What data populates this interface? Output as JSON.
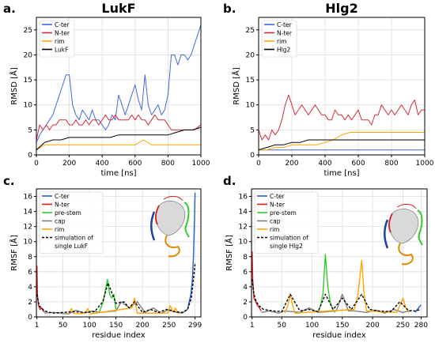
{
  "colors": {
    "cter": "#4169e1",
    "nter": "#d62a3a",
    "rim": "#ffa500",
    "black": "#000000",
    "prestem": "#2ecc2e",
    "cap": "#808080",
    "grid": "#dddddd",
    "blue_strong": "#1f5fd6",
    "red_strong": "#d21f1f"
  },
  "chart_data": [
    {
      "panel": "a",
      "type": "line",
      "panel_letter": "a.",
      "title": "LukF",
      "xlabel": "time [ns]",
      "ylabel": "RMSD [Å]",
      "xlim": [
        0,
        1000
      ],
      "ylim": [
        0,
        27.5
      ],
      "xticks": [
        0,
        200,
        400,
        600,
        800,
        1000
      ],
      "yticks": [
        0,
        5,
        10,
        15,
        20,
        25
      ],
      "grid": true,
      "legend": "top-left",
      "series": [
        {
          "name": "C-ter",
          "color_key": "cter",
          "x": [
            0,
            20,
            40,
            60,
            80,
            100,
            120,
            140,
            160,
            180,
            200,
            220,
            240,
            260,
            280,
            300,
            320,
            340,
            360,
            380,
            400,
            420,
            440,
            460,
            480,
            500,
            520,
            540,
            560,
            580,
            600,
            620,
            640,
            660,
            680,
            700,
            720,
            740,
            760,
            780,
            800,
            820,
            840,
            860,
            880,
            900,
            920,
            940,
            960,
            980,
            1000
          ],
          "y": [
            2.5,
            4,
            5,
            6,
            7,
            8,
            10,
            12,
            14,
            16,
            16,
            10,
            8,
            7,
            9,
            8,
            7,
            9,
            7,
            7,
            6,
            5,
            6,
            8,
            7,
            12,
            10,
            8,
            10,
            12,
            14,
            11,
            9,
            16,
            10,
            8,
            9,
            10,
            8,
            9,
            12,
            20,
            20,
            18,
            20,
            20,
            19,
            20,
            22,
            24,
            26
          ]
        },
        {
          "name": "N-ter",
          "color_key": "nter",
          "x": [
            0,
            20,
            40,
            60,
            80,
            100,
            120,
            140,
            160,
            180,
            200,
            220,
            240,
            260,
            280,
            300,
            320,
            340,
            360,
            380,
            400,
            420,
            440,
            460,
            480,
            500,
            520,
            540,
            560,
            580,
            600,
            620,
            640,
            660,
            680,
            700,
            720,
            740,
            760,
            780,
            800,
            820,
            840,
            860,
            880,
            900,
            920,
            940,
            960,
            980,
            1000
          ],
          "y": [
            3,
            6,
            5,
            6,
            5,
            6,
            6,
            7,
            7,
            7,
            6,
            6,
            7,
            6,
            6,
            7,
            6,
            7,
            7,
            6,
            7,
            8,
            7,
            7,
            8,
            7,
            7,
            7,
            7,
            8,
            7,
            8,
            7,
            7,
            6,
            7,
            8,
            7,
            7,
            7,
            6,
            5,
            5,
            5,
            5,
            5,
            5,
            5,
            5,
            5.5,
            6
          ]
        },
        {
          "name": "rim",
          "color_key": "rim",
          "x": [
            0,
            50,
            100,
            150,
            200,
            250,
            300,
            350,
            400,
            450,
            500,
            550,
            600,
            650,
            700,
            750,
            800,
            850,
            900,
            950,
            1000
          ],
          "y": [
            1,
            2,
            2,
            2,
            2,
            2,
            2,
            2,
            2,
            2,
            2,
            2,
            2,
            3,
            2,
            2,
            2,
            2,
            2,
            2,
            2
          ]
        },
        {
          "name": "LukF",
          "color_key": "black",
          "x": [
            0,
            50,
            100,
            150,
            200,
            250,
            300,
            350,
            400,
            450,
            500,
            550,
            600,
            650,
            700,
            750,
            800,
            850,
            900,
            950,
            1000
          ],
          "y": [
            1,
            2.5,
            3,
            3,
            3.5,
            3.5,
            3.5,
            3.5,
            3.5,
            3.5,
            4,
            4,
            4,
            4,
            4,
            4,
            4,
            4.5,
            5,
            5,
            5.5
          ]
        }
      ]
    },
    {
      "panel": "b",
      "type": "line",
      "panel_letter": "b.",
      "title": "Hlg2",
      "xlabel": "time [ns]",
      "ylabel": "RMSD [Å]",
      "xlim": [
        0,
        1000
      ],
      "ylim": [
        0,
        27.5
      ],
      "xticks": [
        0,
        200,
        400,
        600,
        800,
        1000
      ],
      "yticks": [
        0,
        5,
        10,
        15,
        20,
        25
      ],
      "grid": true,
      "legend": "top-left",
      "series": [
        {
          "name": "C-ter",
          "color_key": "cter",
          "x": [
            0,
            50,
            100,
            150,
            200,
            250,
            300,
            350,
            400,
            450,
            500,
            550,
            600,
            650,
            700,
            750,
            800,
            850,
            900,
            950,
            1000
          ],
          "y": [
            1,
            1,
            1,
            1,
            1,
            1,
            1,
            1,
            1,
            1,
            1,
            1,
            1,
            1,
            1,
            1,
            1,
            1,
            1,
            1,
            1
          ]
        },
        {
          "name": "N-ter",
          "color_key": "nter",
          "x": [
            0,
            20,
            40,
            60,
            80,
            100,
            120,
            140,
            160,
            180,
            200,
            220,
            240,
            260,
            280,
            300,
            320,
            340,
            360,
            380,
            400,
            420,
            440,
            460,
            480,
            500,
            520,
            540,
            560,
            580,
            600,
            620,
            640,
            660,
            680,
            700,
            720,
            740,
            760,
            780,
            800,
            820,
            840,
            860,
            880,
            900,
            920,
            940,
            960,
            980,
            1000
          ],
          "y": [
            5,
            3,
            4,
            3,
            5,
            4,
            5,
            7,
            10,
            12,
            10,
            8,
            9,
            10,
            9,
            8,
            9,
            10,
            9,
            8,
            8,
            7,
            7,
            9,
            8,
            8,
            7,
            8,
            7,
            8,
            9,
            7,
            7,
            7,
            6,
            8,
            8,
            10,
            9,
            8,
            9,
            8,
            9,
            10,
            9,
            8,
            10,
            11,
            8,
            9,
            9
          ]
        },
        {
          "name": "rim",
          "color_key": "rim",
          "x": [
            0,
            50,
            100,
            150,
            200,
            250,
            300,
            350,
            400,
            450,
            500,
            550,
            600,
            650,
            700,
            750,
            800,
            850,
            900,
            950,
            1000
          ],
          "y": [
            1,
            1,
            1.5,
            1.5,
            2,
            2,
            2,
            2,
            2.5,
            3,
            4,
            4.5,
            4.5,
            4.5,
            4.5,
            4.5,
            4.5,
            4.5,
            4.5,
            4.5,
            4.5
          ]
        },
        {
          "name": "Hlg2",
          "color_key": "black",
          "x": [
            0,
            50,
            100,
            150,
            200,
            250,
            300,
            350,
            400,
            450,
            500,
            550,
            600,
            650,
            700,
            750,
            800,
            850,
            900,
            950,
            1000
          ],
          "y": [
            1,
            1.5,
            2,
            2,
            2.5,
            2.5,
            3,
            3,
            3,
            3,
            3,
            3,
            3,
            3,
            3,
            3,
            3,
            3,
            3,
            3,
            3
          ]
        }
      ]
    },
    {
      "panel": "c",
      "type": "line",
      "panel_letter": "c.",
      "xlabel": "residue index",
      "ylabel": "RMSF [Å]",
      "xlim": [
        0,
        310
      ],
      "ylim": [
        0,
        17
      ],
      "xticks": [
        1,
        50,
        100,
        150,
        200,
        250,
        299
      ],
      "yticks": [
        0,
        2,
        4,
        6,
        8,
        10,
        12,
        14,
        16
      ],
      "grid": true,
      "legend": "top-left",
      "series": [
        {
          "name": "C-ter",
          "color_key": "blue_strong",
          "x": [
            285,
            288,
            291,
            294,
            296,
            298,
            299
          ],
          "y": [
            1,
            2,
            3,
            5,
            8,
            13,
            16.5
          ]
        },
        {
          "name": "N-ter",
          "color_key": "red_strong",
          "x": [
            1,
            2,
            4,
            7,
            10,
            13,
            16
          ],
          "y": [
            6.8,
            3,
            1.5,
            1,
            1.2,
            0.8,
            0.6
          ]
        },
        {
          "name": "pre-stem",
          "color_key": "prestem",
          "x": [
            118,
            122,
            126,
            130,
            134,
            138,
            142,
            146,
            150
          ],
          "y": [
            0.6,
            1.3,
            2,
            3.5,
            5,
            3,
            2.5,
            3,
            1
          ]
        },
        {
          "name": "cap",
          "color_key": "cap",
          "x": [
            16,
            30,
            45,
            60,
            75,
            90,
            105,
            118,
            150,
            160,
            175,
            190,
            205,
            220,
            235,
            250,
            265,
            275,
            285
          ],
          "y": [
            0.5,
            0.6,
            0.5,
            0.4,
            0.9,
            0.5,
            0.8,
            0.6,
            0.8,
            2,
            1.2,
            2,
            0.6,
            1.2,
            0.5,
            1,
            0.6,
            0.5,
            1
          ]
        },
        {
          "name": "rim",
          "color_key": "rim",
          "x": [
            60,
            66,
            70,
            80,
            92,
            97,
            102,
            180,
            185,
            190,
            248,
            252,
            258,
            262,
            268
          ],
          "y": [
            0.4,
            1.1,
            0.5,
            0.4,
            0.5,
            1.1,
            0.4,
            1.2,
            2.5,
            0.5,
            0.5,
            1.5,
            0.6,
            1.2,
            0.4
          ]
        },
        {
          "name": "simulation of single LukF",
          "color_key": "black",
          "dashed": true,
          "x": [
            1,
            5,
            15,
            30,
            50,
            70,
            90,
            110,
            125,
            135,
            150,
            165,
            175,
            185,
            200,
            215,
            230,
            245,
            260,
            275,
            285,
            292,
            296,
            299
          ],
          "y": [
            3,
            1.5,
            0.8,
            0.5,
            0.6,
            0.7,
            0.6,
            0.7,
            2,
            4.5,
            1.8,
            2,
            1.2,
            2,
            0.6,
            1,
            0.6,
            1,
            0.7,
            0.6,
            1,
            2.5,
            5,
            7
          ]
        }
      ]
    },
    {
      "panel": "d",
      "type": "line",
      "panel_letter": "d.",
      "xlabel": "residue index",
      "ylabel": "RMSF [Å]",
      "xlim": [
        0,
        290
      ],
      "ylim": [
        0,
        17
      ],
      "xticks": [
        1,
        50,
        100,
        150,
        200,
        250,
        280
      ],
      "yticks": [
        0,
        2,
        4,
        6,
        8,
        10,
        12,
        14,
        16
      ],
      "grid": true,
      "legend": "top-left",
      "series": [
        {
          "name": "C-ter",
          "color_key": "blue_strong",
          "x": [
            270,
            274,
            278,
            280
          ],
          "y": [
            0.6,
            1,
            1.4,
            1.6
          ]
        },
        {
          "name": "N-ter",
          "color_key": "red_strong",
          "x": [
            1,
            2,
            4,
            7,
            10,
            13,
            16
          ],
          "y": [
            8.7,
            5,
            2.5,
            2,
            1.5,
            1.2,
            0.8
          ]
        },
        {
          "name": "pre-stem",
          "color_key": "prestem",
          "x": [
            110,
            114,
            118,
            122,
            126,
            130,
            134,
            138
          ],
          "y": [
            0.6,
            1.5,
            3,
            8.3,
            4,
            2,
            1,
            0.6
          ]
        },
        {
          "name": "cap",
          "color_key": "cap",
          "x": [
            16,
            30,
            45,
            55,
            80,
            95,
            110,
            140,
            150,
            160,
            170,
            190,
            205,
            220,
            235,
            250,
            265
          ],
          "y": [
            0.6,
            0.8,
            0.5,
            0.8,
            0.6,
            1.2,
            0.6,
            0.8,
            3,
            0.8,
            0.8,
            0.6,
            0.9,
            0.5,
            1,
            0.6,
            0.9
          ]
        },
        {
          "name": "rim",
          "color_key": "rim",
          "x": [
            55,
            60,
            64,
            68,
            72,
            170,
            176,
            182,
            186,
            190,
            240,
            245,
            250,
            255,
            260
          ],
          "y": [
            0.5,
            1.5,
            3,
            1.5,
            0.5,
            1,
            3,
            7.5,
            3,
            0.8,
            0.6,
            1.5,
            2.5,
            1.2,
            0.6
          ]
        },
        {
          "name": "simulation of single Hlg2",
          "color_key": "black",
          "dashed": true,
          "x": [
            1,
            4,
            8,
            12,
            20,
            35,
            50,
            64,
            80,
            95,
            110,
            122,
            135,
            150,
            165,
            182,
            195,
            210,
            230,
            245,
            260,
            270,
            280
          ],
          "y": [
            5,
            3,
            2,
            1.5,
            1,
            0.8,
            0.7,
            3,
            0.8,
            1,
            0.7,
            3,
            1,
            2.5,
            1,
            3,
            1,
            0.8,
            0.7,
            2,
            0.8,
            0.8,
            1
          ]
        }
      ]
    }
  ]
}
